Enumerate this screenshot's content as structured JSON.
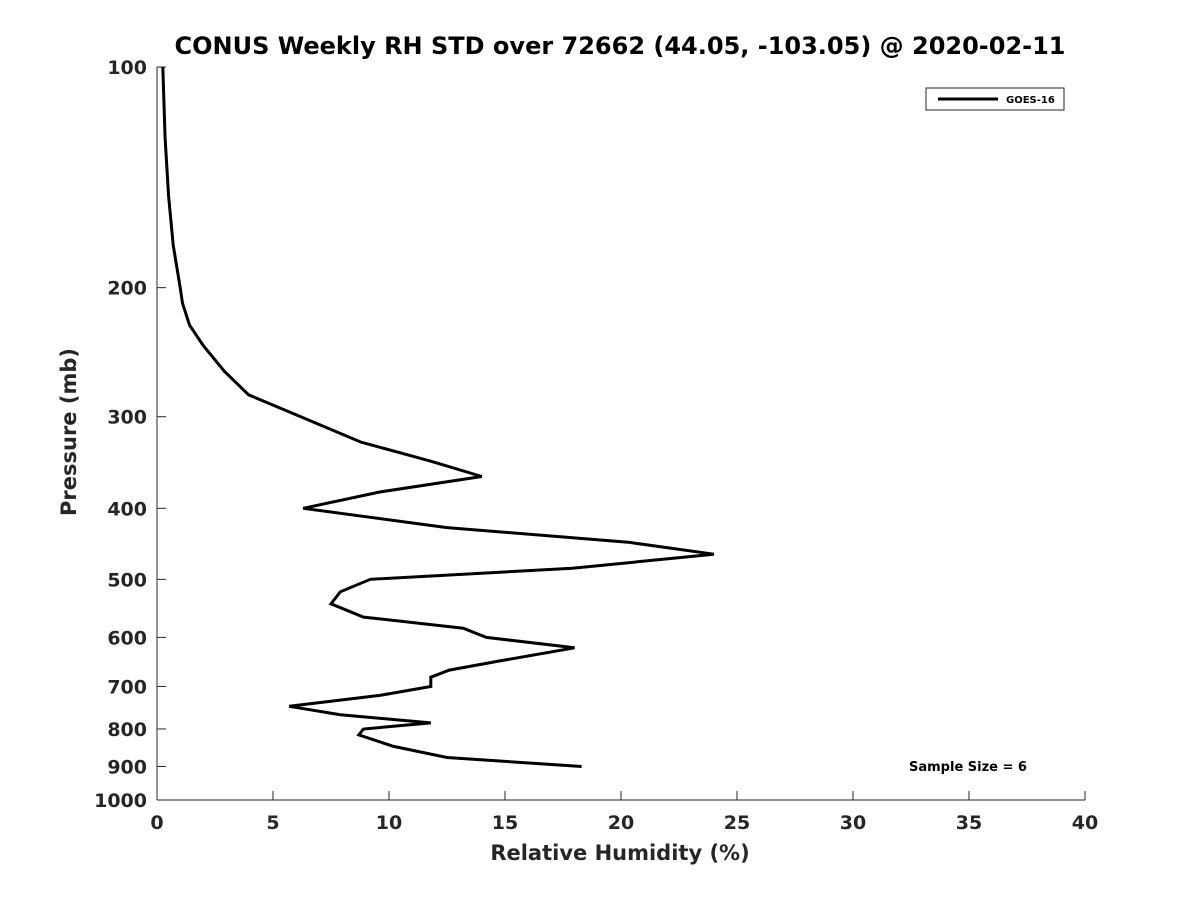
{
  "chart_data": {
    "type": "line",
    "title": "CONUS Weekly RH STD over 72662 (44.05, -103.05) @ 2020-02-11",
    "xlabel": "Relative Humidity (%)",
    "ylabel": "Pressure (mb)",
    "xlim": [
      0,
      40
    ],
    "ylim": [
      100,
      1000
    ],
    "yscale": "log",
    "y_reversed": true,
    "grid": false,
    "legend_position": "top-right",
    "x_ticks": [
      "0",
      "5",
      "10",
      "15",
      "20",
      "25",
      "30",
      "35",
      "40"
    ],
    "y_ticks": [
      "100",
      "200",
      "300",
      "400",
      "500",
      "600",
      "700",
      "800",
      "900",
      "1000"
    ],
    "series": [
      {
        "name": "GOES-16",
        "color": "#000000",
        "x": [
          0.25,
          0.35,
          0.5,
          0.7,
          1.0,
          1.1,
          1.4,
          2.0,
          2.9,
          3.95,
          6.2,
          8.8,
          11.8,
          14.0,
          9.6,
          6.3,
          12.5,
          20.3,
          24.0,
          17.9,
          9.2,
          7.9,
          7.5,
          8.9,
          13.2,
          14.2,
          18.0,
          14.9,
          12.6,
          11.8,
          11.8,
          9.6,
          5.7,
          7.9,
          11.8,
          8.9,
          8.7,
          10.2,
          12.5,
          18.3
        ],
        "y": [
          100,
          125,
          150,
          175,
          200,
          210,
          225,
          240,
          260,
          280,
          300,
          325,
          345,
          362,
          380,
          400,
          425,
          445,
          462,
          483,
          500,
          520,
          540,
          563,
          583,
          600,
          620,
          645,
          665,
          680,
          700,
          720,
          745,
          765,
          785,
          800,
          815,
          845,
          875,
          900
        ]
      }
    ],
    "annotations": [
      "Sample Size = 6"
    ]
  }
}
